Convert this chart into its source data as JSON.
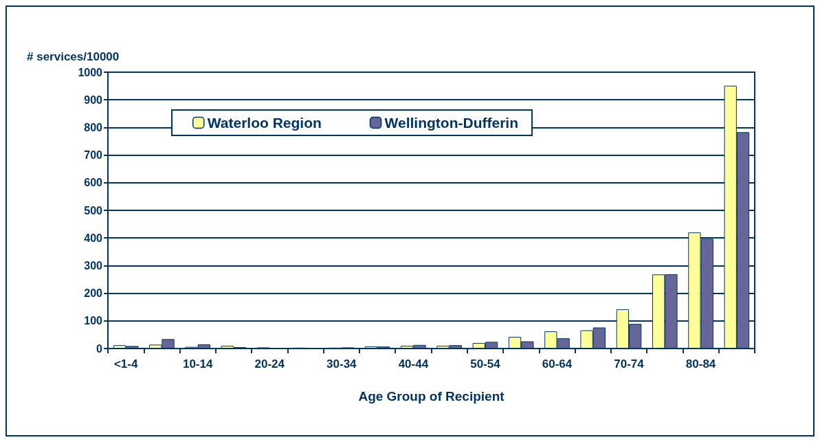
{
  "chart_data": {
    "type": "bar",
    "ylabel": "# services/10000",
    "xlabel": "Age Group of Recipient",
    "categories": [
      "<1-4",
      null,
      "10-14",
      null,
      "20-24",
      null,
      "30-34",
      null,
      "40-44",
      null,
      "50-54",
      null,
      "60-64",
      null,
      "70-74",
      null,
      "80-84",
      null
    ],
    "series": [
      {
        "name": "Waterloo Region",
        "color": "#ffff99",
        "values": [
          12,
          14,
          6,
          10,
          4,
          3,
          3,
          8,
          10,
          10,
          20,
          42,
          62,
          66,
          142,
          268,
          420,
          951
        ]
      },
      {
        "name": "Wellington-Dufferin",
        "color": "#666699",
        "values": [
          9,
          34,
          15,
          5,
          0,
          0,
          4,
          7,
          13,
          12,
          24,
          26,
          37,
          76,
          89,
          269,
          397,
          783
        ]
      }
    ],
    "ylim": [
      0,
      1000
    ],
    "yticks": [
      0,
      100,
      200,
      300,
      400,
      500,
      600,
      700,
      800,
      900,
      1000
    ],
    "grid": "y",
    "legend": "top"
  }
}
